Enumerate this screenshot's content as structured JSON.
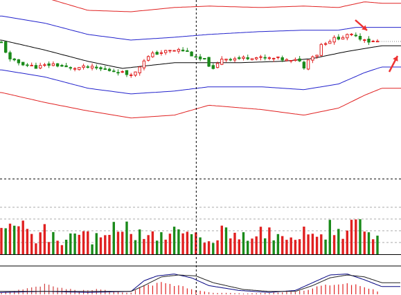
{
  "colors": {
    "background": "#ffffff",
    "candle_up": "#e02020",
    "candle_down": "#1a8a1a",
    "band_outer": "#e02020",
    "band_inner": "#2020cc",
    "middle_line": "#000000",
    "macd_dif": "#000080",
    "macd_dea": "#202020",
    "macd_bar_up": "#e02020",
    "macd_bar_down": "#1a8a1a",
    "arrow": "#ee3333",
    "grid": "#888888"
  },
  "chart_data": {
    "type": "candlestick",
    "title": "",
    "panels": [
      "price",
      "volume",
      "macd"
    ],
    "price": {
      "ylim": [
        0,
        100
      ],
      "candle_count": 88,
      "close_path": [
        [
          0,
          78
        ],
        [
          2,
          66
        ],
        [
          4,
          64
        ],
        [
          8,
          61
        ],
        [
          12,
          63
        ],
        [
          16,
          60
        ],
        [
          20,
          61
        ],
        [
          24,
          59
        ],
        [
          27,
          58
        ],
        [
          29,
          56
        ],
        [
          31,
          57
        ],
        [
          33,
          66
        ],
        [
          35,
          70
        ],
        [
          38,
          72
        ],
        [
          41,
          73
        ],
        [
          43,
          72
        ],
        [
          45,
          67
        ],
        [
          47,
          66
        ],
        [
          49,
          59
        ],
        [
          51,
          67
        ],
        [
          55,
          67
        ],
        [
          58,
          68
        ],
        [
          61,
          67
        ],
        [
          64,
          67
        ],
        [
          67,
          65
        ],
        [
          69,
          66
        ],
        [
          70,
          60
        ],
        [
          71,
          67
        ],
        [
          73,
          70
        ],
        [
          74,
          77
        ],
        [
          77,
          81
        ],
        [
          80,
          83
        ],
        [
          82,
          84
        ],
        [
          83,
          81
        ],
        [
          84,
          81
        ],
        [
          85,
          79
        ]
      ],
      "middle_line": [
        [
          0,
          80
        ],
        [
          10,
          73
        ],
        [
          20,
          65
        ],
        [
          28,
          60
        ],
        [
          34,
          62
        ],
        [
          40,
          64
        ],
        [
          45,
          64
        ],
        [
          55,
          64
        ],
        [
          65,
          65
        ],
        [
          72,
          67
        ],
        [
          80,
          72
        ],
        [
          88,
          76
        ]
      ],
      "upper_inner": [
        [
          0,
          97
        ],
        [
          10,
          92
        ],
        [
          20,
          84
        ],
        [
          30,
          80
        ],
        [
          40,
          82
        ],
        [
          48,
          84
        ],
        [
          60,
          86
        ],
        [
          70,
          87
        ],
        [
          78,
          87
        ],
        [
          82,
          89
        ],
        [
          88,
          89
        ]
      ],
      "lower_inner": [
        [
          0,
          59
        ],
        [
          10,
          54
        ],
        [
          20,
          46
        ],
        [
          30,
          42
        ],
        [
          40,
          44
        ],
        [
          48,
          47
        ],
        [
          60,
          47
        ],
        [
          70,
          45
        ],
        [
          78,
          49
        ],
        [
          84,
          57
        ],
        [
          88,
          61
        ]
      ],
      "upper_outer": [
        [
          0,
          116
        ],
        [
          10,
          110
        ],
        [
          20,
          101
        ],
        [
          30,
          100
        ],
        [
          40,
          103
        ],
        [
          48,
          104
        ],
        [
          60,
          103
        ],
        [
          70,
          104
        ],
        [
          78,
          103
        ],
        [
          84,
          107
        ],
        [
          88,
          106
        ]
      ],
      "lower_outer": [
        [
          0,
          43
        ],
        [
          10,
          36
        ],
        [
          20,
          30
        ],
        [
          30,
          25
        ],
        [
          40,
          27
        ],
        [
          48,
          34
        ],
        [
          60,
          31
        ],
        [
          70,
          27
        ],
        [
          78,
          32
        ],
        [
          84,
          41
        ],
        [
          88,
          46
        ]
      ],
      "last_price_level": 79,
      "vertical_marker_index": 45
    },
    "volume": {
      "ylim": [
        0,
        100
      ],
      "reference_levels": [
        100,
        75,
        50,
        25
      ],
      "envelope": [
        [
          0,
          58
        ],
        [
          8,
          50
        ],
        [
          16,
          40
        ],
        [
          24,
          46
        ],
        [
          32,
          66
        ],
        [
          36,
          62
        ],
        [
          44,
          44
        ],
        [
          48,
          50
        ],
        [
          56,
          53
        ],
        [
          64,
          50
        ],
        [
          70,
          58
        ],
        [
          76,
          66
        ],
        [
          80,
          70
        ],
        [
          84,
          60
        ],
        [
          85,
          45
        ]
      ]
    },
    "macd": {
      "bar_envelope": [
        [
          0,
          4
        ],
        [
          6,
          12
        ],
        [
          10,
          22
        ],
        [
          14,
          14
        ],
        [
          18,
          8
        ],
        [
          22,
          12
        ],
        [
          26,
          6
        ],
        [
          30,
          4
        ],
        [
          33,
          18
        ],
        [
          37,
          25
        ],
        [
          41,
          20
        ],
        [
          45,
          10
        ],
        [
          49,
          4
        ],
        [
          56,
          2
        ],
        [
          64,
          4
        ],
        [
          70,
          8
        ],
        [
          74,
          20
        ],
        [
          78,
          26
        ],
        [
          82,
          22
        ],
        [
          86,
          10
        ],
        [
          88,
          4
        ]
      ],
      "dif_path": [
        [
          0,
          4
        ],
        [
          10,
          6
        ],
        [
          20,
          4
        ],
        [
          30,
          6
        ],
        [
          33,
          28
        ],
        [
          36,
          38
        ],
        [
          40,
          42
        ],
        [
          44,
          34
        ],
        [
          48,
          18
        ],
        [
          55,
          8
        ],
        [
          62,
          4
        ],
        [
          68,
          8
        ],
        [
          72,
          24
        ],
        [
          76,
          40
        ],
        [
          80,
          42
        ],
        [
          84,
          30
        ],
        [
          88,
          16
        ]
      ],
      "dea_path": [
        [
          0,
          6
        ],
        [
          10,
          6
        ],
        [
          20,
          6
        ],
        [
          30,
          6
        ],
        [
          33,
          18
        ],
        [
          37,
          36
        ],
        [
          41,
          40
        ],
        [
          45,
          38
        ],
        [
          49,
          24
        ],
        [
          56,
          10
        ],
        [
          62,
          6
        ],
        [
          68,
          6
        ],
        [
          72,
          18
        ],
        [
          76,
          34
        ],
        [
          80,
          40
        ],
        [
          84,
          36
        ],
        [
          88,
          24
        ]
      ]
    }
  }
}
